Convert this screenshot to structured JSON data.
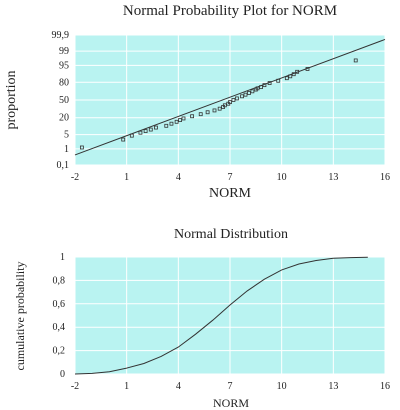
{
  "chart_data": [
    {
      "type": "scatter",
      "title": "Normal Probability Plot for NORM",
      "xlabel": "NORM",
      "ylabel": "proportion",
      "xlim": [
        -2,
        16
      ],
      "y_scale": "normal-probability",
      "x_ticks": [
        "-2",
        "1",
        "4",
        "7",
        "10",
        "13",
        "16"
      ],
      "y_ticks": [
        {
          "p": 0.1,
          "label": "0,1"
        },
        {
          "p": 1,
          "label": "1"
        },
        {
          "p": 5,
          "label": "5"
        },
        {
          "p": 20,
          "label": "20"
        },
        {
          "p": 50,
          "label": "50"
        },
        {
          "p": 80,
          "label": "80"
        },
        {
          "p": 95,
          "label": "95"
        },
        {
          "p": 99,
          "label": "99"
        },
        {
          "p": 99.9,
          "label": "99,9"
        }
      ],
      "fit_line": {
        "x": [
          -2,
          16
        ],
        "p": [
          0.45,
          99.8
        ]
      },
      "points": [
        {
          "x": -1.6,
          "p": 1.2
        },
        {
          "x": 0.8,
          "p": 3.0
        },
        {
          "x": 1.3,
          "p": 4.5
        },
        {
          "x": 1.8,
          "p": 6
        },
        {
          "x": 2.1,
          "p": 7
        },
        {
          "x": 2.4,
          "p": 8
        },
        {
          "x": 2.7,
          "p": 9.5
        },
        {
          "x": 3.3,
          "p": 11
        },
        {
          "x": 3.6,
          "p": 13
        },
        {
          "x": 3.9,
          "p": 15
        },
        {
          "x": 4.1,
          "p": 17
        },
        {
          "x": 4.3,
          "p": 19
        },
        {
          "x": 4.8,
          "p": 22
        },
        {
          "x": 5.3,
          "p": 25
        },
        {
          "x": 5.7,
          "p": 28
        },
        {
          "x": 6.1,
          "p": 31
        },
        {
          "x": 6.4,
          "p": 34
        },
        {
          "x": 6.6,
          "p": 37
        },
        {
          "x": 6.7,
          "p": 40
        },
        {
          "x": 6.9,
          "p": 43
        },
        {
          "x": 7.0,
          "p": 46
        },
        {
          "x": 7.2,
          "p": 50
        },
        {
          "x": 7.4,
          "p": 53
        },
        {
          "x": 7.7,
          "p": 57
        },
        {
          "x": 7.9,
          "p": 60
        },
        {
          "x": 8.1,
          "p": 63
        },
        {
          "x": 8.3,
          "p": 66
        },
        {
          "x": 8.5,
          "p": 69
        },
        {
          "x": 8.6,
          "p": 71
        },
        {
          "x": 8.8,
          "p": 73
        },
        {
          "x": 9.0,
          "p": 76
        },
        {
          "x": 9.3,
          "p": 79
        },
        {
          "x": 9.8,
          "p": 82
        },
        {
          "x": 10.3,
          "p": 85
        },
        {
          "x": 10.5,
          "p": 87
        },
        {
          "x": 10.7,
          "p": 89
        },
        {
          "x": 10.9,
          "p": 91
        },
        {
          "x": 11.5,
          "p": 93
        },
        {
          "x": 14.3,
          "p": 97
        }
      ],
      "plot_bg": "#b9f3f1",
      "grid": true
    },
    {
      "type": "line",
      "title": "Normal Distribution",
      "xlabel": "NORM",
      "ylabel": "cumulative probability",
      "xlim": [
        -2,
        16
      ],
      "ylim": [
        0,
        1
      ],
      "x_ticks": [
        "-2",
        "1",
        "4",
        "7",
        "10",
        "13",
        "16"
      ],
      "y_ticks": [
        "0",
        "0,2",
        "0,4",
        "0,6",
        "0,8",
        "1"
      ],
      "x": [
        -2,
        -1,
        0,
        1,
        2,
        3,
        4,
        5,
        6,
        7,
        8,
        9,
        10,
        11,
        12,
        13,
        14,
        15
      ],
      "y": [
        0.0,
        0.005,
        0.02,
        0.05,
        0.09,
        0.15,
        0.23,
        0.34,
        0.46,
        0.59,
        0.71,
        0.81,
        0.89,
        0.94,
        0.97,
        0.99,
        0.995,
        0.998
      ],
      "plot_bg": "#b9f3f1",
      "grid": true
    }
  ]
}
